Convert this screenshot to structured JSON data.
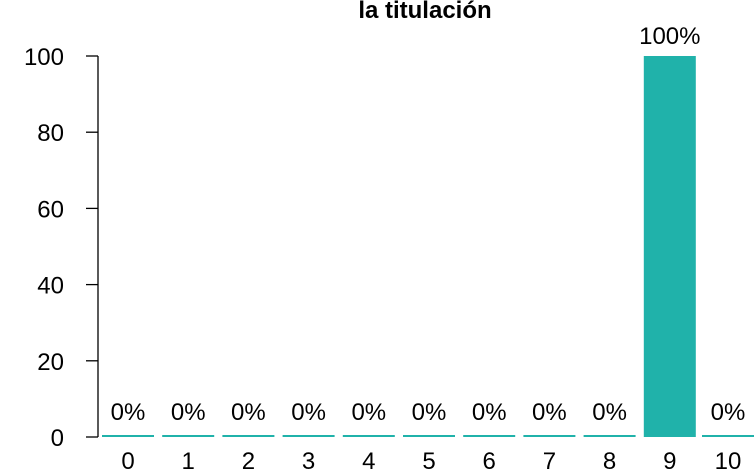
{
  "chart_data": {
    "type": "bar",
    "title": "la titulación",
    "xlabel": "",
    "ylabel": "",
    "categories": [
      "0",
      "1",
      "2",
      "3",
      "4",
      "5",
      "6",
      "7",
      "8",
      "9",
      "10"
    ],
    "values": [
      0,
      0,
      0,
      0,
      0,
      0,
      0,
      0,
      0,
      100,
      0
    ],
    "data_labels": [
      "0%",
      "0%",
      "0%",
      "0%",
      "0%",
      "0%",
      "0%",
      "0%",
      "0%",
      "100%",
      "0%"
    ],
    "ylim": [
      0,
      100
    ],
    "yticks": [
      0,
      20,
      40,
      60,
      80,
      100
    ],
    "bar_color": "#20b2aa",
    "grid": false,
    "legend": "none"
  }
}
